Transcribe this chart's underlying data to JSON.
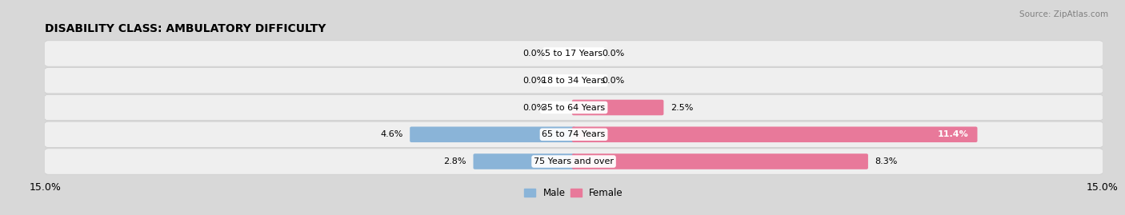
{
  "title": "DISABILITY CLASS: AMBULATORY DIFFICULTY",
  "source": "Source: ZipAtlas.com",
  "categories": [
    "5 to 17 Years",
    "18 to 34 Years",
    "35 to 64 Years",
    "65 to 74 Years",
    "75 Years and over"
  ],
  "male_values": [
    0.0,
    0.0,
    0.0,
    4.6,
    2.8
  ],
  "female_values": [
    0.0,
    0.0,
    2.5,
    11.4,
    8.3
  ],
  "male_color": "#8ab4d8",
  "female_color": "#e8799a",
  "male_label": "Male",
  "female_label": "Female",
  "xlim": 15.0,
  "fig_bg_color": "#d8d8d8",
  "row_bg_color": "#efefef",
  "title_fontsize": 10,
  "tick_fontsize": 9,
  "label_fontsize": 8,
  "category_fontsize": 8
}
